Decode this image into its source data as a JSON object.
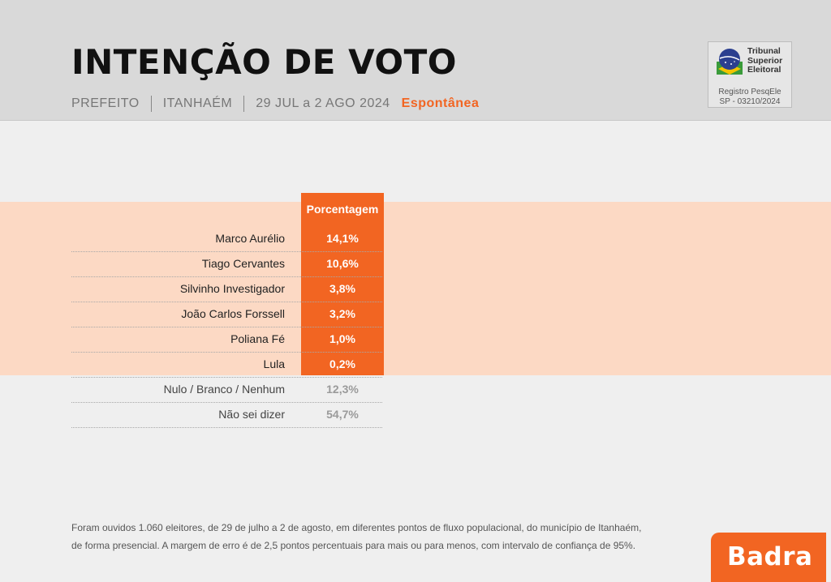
{
  "header": {
    "title": "INTENÇÃO DE VOTO",
    "office": "PREFEITO",
    "city": "ITANHAÉM",
    "period": "29 JUL a 2 AGO 2024",
    "survey_type": "Espontânea"
  },
  "registry": {
    "org_line1": "Tribunal",
    "org_line2": "Superior",
    "org_line3": "Eleitoral",
    "reg_label": "Registro PesqEle",
    "reg_number": "SP - 03210/2024"
  },
  "chart_data": {
    "type": "table",
    "column_header": "Porcentagem",
    "rows": [
      {
        "name": "Marco Aurélio",
        "value": "14,1%"
      },
      {
        "name": "Tiago Cervantes",
        "value": "10,6%"
      },
      {
        "name": "Silvinho Investigador",
        "value": "3,8%"
      },
      {
        "name": "João Carlos Forssell",
        "value": "3,2%"
      },
      {
        "name": "Poliana Fé",
        "value": "1,0%"
      },
      {
        "name": "Lula",
        "value": "0,2%"
      }
    ],
    "other_rows": [
      {
        "name": "Nulo / Branco / Nenhum",
        "value": "12,3%"
      },
      {
        "name": "Não sei dizer",
        "value": "54,7%"
      }
    ]
  },
  "footnote": {
    "line1": "Foram ouvidos 1.060 eleitores, de 29 de julho a 2 de agosto, em diferentes pontos de fluxo populacional, do município de Itanhaém,",
    "line2": "de forma presencial. A margem de erro é de 2,5 pontos percentuais para mais ou para menos, com intervalo de confiança de 95%."
  },
  "brand": {
    "name": "Badra"
  },
  "colors": {
    "accent": "#f26522",
    "band": "#fcd9c4"
  }
}
